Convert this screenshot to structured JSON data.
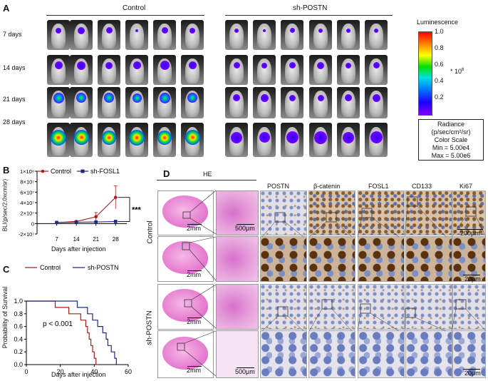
{
  "panelA": {
    "label": "A",
    "groups": [
      "Control",
      "sh-POSTN"
    ],
    "rows": [
      "7 days",
      "14 days",
      "21 days",
      "28 days"
    ],
    "colorbar_title": "Luminescence",
    "ticks": [
      "1.0",
      "0.8",
      "0.6",
      "0.4",
      "0.2"
    ],
    "multiplier": "* 10",
    "multiplier_exp": "6",
    "scale_lines": [
      "Radiance",
      "(p/sec/cm²/sr)",
      "Color Scale",
      "Min = 5.00e4",
      "Max = 5.00e6"
    ]
  },
  "panelB": {
    "label": "B",
    "chart_data": {
      "type": "line",
      "x": [
        7,
        14,
        21,
        28
      ],
      "series": [
        {
          "name": "Control",
          "values": [
            2000000,
            4000000,
            13000000,
            50000000
          ],
          "err": [
            500000,
            1000000,
            8000000,
            22000000
          ],
          "color": "#b01c1c"
        },
        {
          "name": "sh-FOSL1",
          "values": [
            2000000,
            2500000,
            3000000,
            4000000
          ],
          "err": [
            300000,
            400000,
            600000,
            800000
          ],
          "color": "#1c2a80"
        }
      ],
      "xlabel": "Days after injection",
      "ylabel": "BLI(p/sec/2.0xcm/sr)",
      "yticks": [
        "1×10⁸",
        "8×10⁷",
        "6×10⁷",
        "4×10⁷",
        "2×10⁷",
        "0",
        "-2×10⁷"
      ],
      "ylim": [
        -20000000,
        100000000
      ],
      "xticks": [
        "7",
        "14",
        "21",
        "28"
      ],
      "significance": "***"
    }
  },
  "panelC": {
    "label": "C",
    "chart_data": {
      "type": "line",
      "series": [
        {
          "name": "Control",
          "color": "#b01c1c",
          "steps": [
            [
              0,
              1.0
            ],
            [
              17,
              1.0
            ],
            [
              17,
              0.9
            ],
            [
              25,
              0.9
            ],
            [
              25,
              0.8
            ],
            [
              32,
              0.8
            ],
            [
              32,
              0.7
            ],
            [
              35,
              0.7
            ],
            [
              35,
              0.6
            ],
            [
              36,
              0.6
            ],
            [
              36,
              0.5
            ],
            [
              37,
              0.5
            ],
            [
              37,
              0.4
            ],
            [
              38,
              0.4
            ],
            [
              38,
              0.3
            ],
            [
              39,
              0.3
            ],
            [
              39,
              0.2
            ],
            [
              40,
              0.2
            ],
            [
              40,
              0.1
            ],
            [
              41,
              0.1
            ],
            [
              41,
              0.0
            ],
            [
              42,
              0.0
            ]
          ]
        },
        {
          "name": "sh-POSTN",
          "color": "#1c2a80",
          "steps": [
            [
              0,
              1.0
            ],
            [
              30,
              1.0
            ],
            [
              30,
              0.9
            ],
            [
              36,
              0.9
            ],
            [
              36,
              0.8
            ],
            [
              39,
              0.8
            ],
            [
              39,
              0.7
            ],
            [
              42,
              0.7
            ],
            [
              42,
              0.6
            ],
            [
              45,
              0.6
            ],
            [
              45,
              0.5
            ],
            [
              47,
              0.5
            ],
            [
              47,
              0.4
            ],
            [
              48,
              0.4
            ],
            [
              48,
              0.3
            ],
            [
              50,
              0.3
            ],
            [
              50,
              0.2
            ],
            [
              52,
              0.2
            ],
            [
              52,
              0.1
            ],
            [
              53,
              0.1
            ],
            [
              53,
              0.0
            ],
            [
              54,
              0.0
            ]
          ]
        }
      ],
      "xlabel": "Days after injection",
      "ylabel": "Probability of Survival",
      "xticks": [
        "0",
        "20",
        "40",
        "60"
      ],
      "yticks": [
        "1.0",
        "0.8",
        "0.6",
        "0.4",
        "0.2",
        "0.0"
      ],
      "xlim": [
        0,
        60
      ],
      "ylim": [
        0,
        1
      ],
      "annotation": "p < 0.001"
    }
  },
  "panelD": {
    "label": "D",
    "he_title": "HE",
    "columns": [
      "POSTN",
      "β-catenin",
      "FOSL1",
      "CD133",
      "Ki67"
    ],
    "groups": [
      "Control",
      "sh-POSTN"
    ],
    "scale_2mm": "2mm",
    "scale_500": "500μm",
    "scale_200": "200μm",
    "scale_20": "20μm"
  }
}
